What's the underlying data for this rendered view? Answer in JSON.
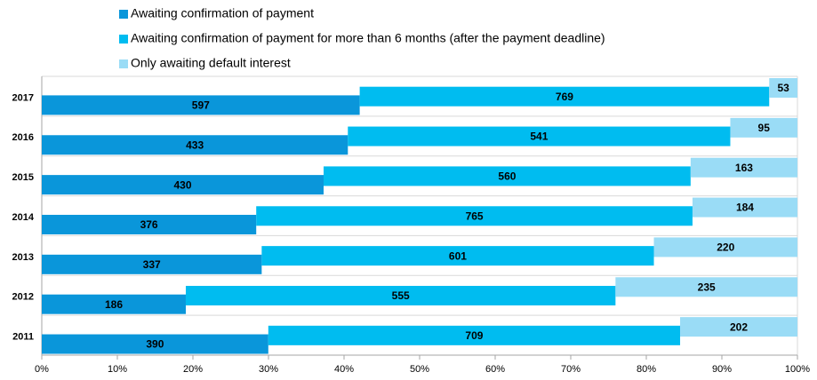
{
  "chart_data": {
    "type": "bar",
    "orientation": "horizontal",
    "stacked": "percent",
    "categories": [
      "2017",
      "2016",
      "2015",
      "2014",
      "2013",
      "2012",
      "2011"
    ],
    "series": [
      {
        "name": "Awaiting confirmation of payment",
        "color": "#0a96da",
        "values": [
          597,
          433,
          430,
          376,
          337,
          186,
          390
        ]
      },
      {
        "name": "Awaiting confirmation of payment for more than 6 months (after the payment deadline)",
        "color": "#00bcf0",
        "values": [
          769,
          541,
          560,
          765,
          601,
          555,
          709
        ]
      },
      {
        "name": "Only awaiting default interest",
        "color": "#9adcf6",
        "values": [
          53,
          95,
          163,
          184,
          220,
          235,
          202
        ]
      }
    ],
    "xlim": [
      0,
      100
    ],
    "xticks": [
      {
        "value": 0,
        "label": "0%"
      },
      {
        "value": 10,
        "label": "10%"
      },
      {
        "value": 20,
        "label": "20%"
      },
      {
        "value": 30,
        "label": "30%"
      },
      {
        "value": 40,
        "label": "40%"
      },
      {
        "value": 50,
        "label": "50%"
      },
      {
        "value": 60,
        "label": "60%"
      },
      {
        "value": 70,
        "label": "70%"
      },
      {
        "value": 80,
        "label": "80%"
      },
      {
        "value": 90,
        "label": "90%"
      },
      {
        "value": 100,
        "label": "100%"
      }
    ],
    "legend": "top"
  }
}
